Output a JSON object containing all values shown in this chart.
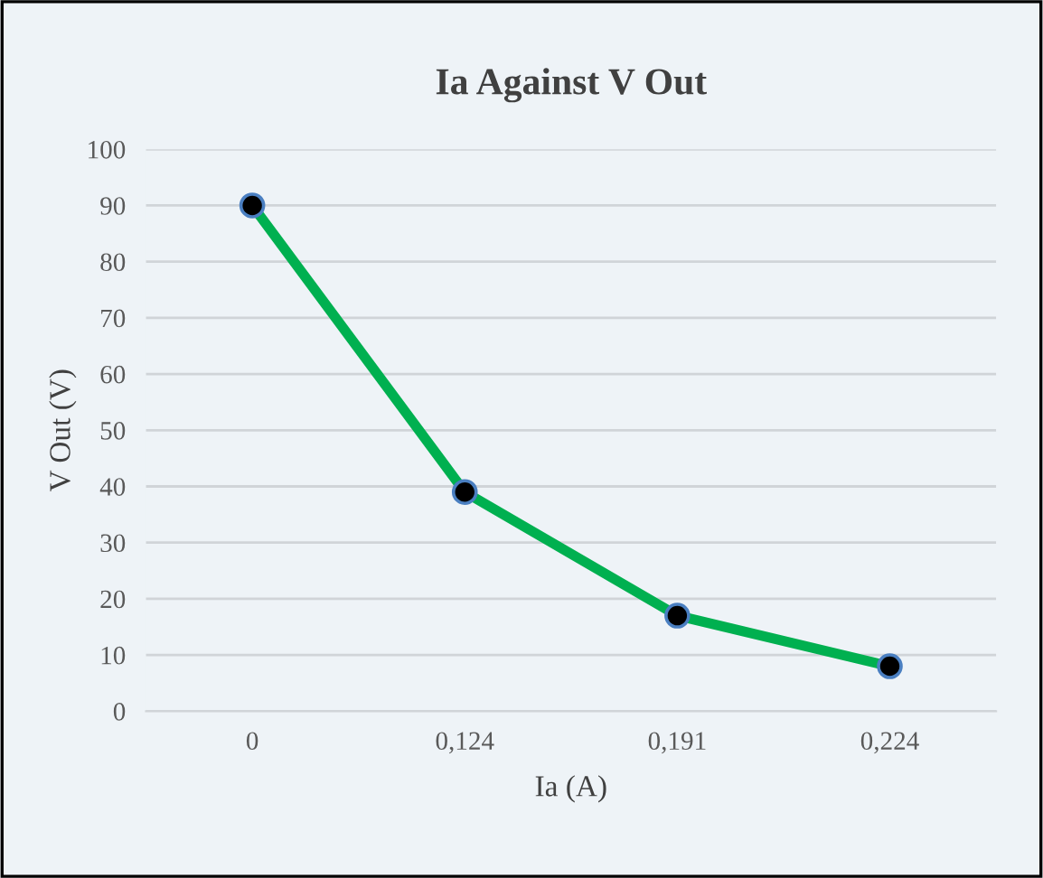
{
  "chart_data": {
    "type": "line",
    "title": "Ia Against V Out",
    "xlabel": "Ia (A)",
    "ylabel": "V Out (V)",
    "categories": [
      "0",
      "0,124",
      "0,191",
      "0,224"
    ],
    "series": [
      {
        "color": "#00b050",
        "values": [
          90,
          39,
          17,
          8
        ]
      }
    ],
    "ylim": [
      0,
      100
    ],
    "yticks": [
      0,
      10,
      20,
      30,
      40,
      50,
      60,
      70,
      80,
      90,
      100
    ],
    "grid": "y",
    "marker": "circle",
    "line_style": "solid"
  }
}
